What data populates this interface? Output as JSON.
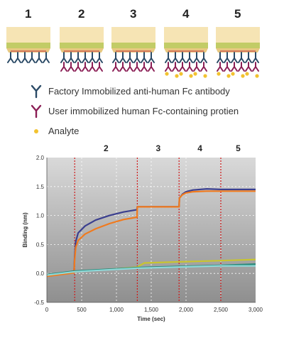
{
  "steps": [
    {
      "label": "1",
      "coating": "factory",
      "analyte": false
    },
    {
      "label": "2",
      "coating": "user",
      "analyte": false
    },
    {
      "label": "3",
      "coating": "user",
      "analyte": false
    },
    {
      "label": "4",
      "coating": "user",
      "analyte": true
    },
    {
      "label": "5",
      "coating": "user",
      "analyte": true
    }
  ],
  "legend": [
    {
      "icon": "factory-antibody-icon",
      "color": "#2a4a66",
      "label": "Factory Immobilized anti-human Fc antibody"
    },
    {
      "icon": "user-protein-icon",
      "color": "#8b1e55",
      "label": "User immobilized human Fc-containing protien"
    },
    {
      "icon": "analyte-dot-icon",
      "color": "#f2c230",
      "label": "Analyte"
    }
  ],
  "colors": {
    "tip_body": "#f6e4b4",
    "tip_band": "#c2cc66",
    "tip_base": "#e8c880",
    "plot_bg_top": "#d9d9d9",
    "plot_bg_bottom": "#8f8f8f",
    "step_line": "#d01818"
  },
  "chart_data": {
    "type": "line",
    "xlabel": "Time (sec)",
    "ylabel": "Binding (nm)",
    "xlim": [
      0,
      3000
    ],
    "ylim": [
      -0.5,
      2.0
    ],
    "xticks": [
      0,
      500,
      1000,
      1500,
      2000,
      2500,
      3000
    ],
    "xtick_labels": [
      "0",
      "500",
      "1,000",
      "1,500",
      "2,000",
      "2,500",
      "3,000"
    ],
    "yticks": [
      -0.5,
      0.0,
      0.5,
      1.0,
      1.5,
      2.0
    ],
    "ytick_labels": [
      "-0.5",
      "0.0",
      "0.5",
      "1.0",
      "1.5",
      "2.0"
    ],
    "grid": true,
    "step_markers": [
      {
        "label": "2",
        "x": 400
      },
      {
        "label": "3",
        "x": 1300
      },
      {
        "label": "4",
        "x": 1900
      },
      {
        "label": "5",
        "x": 2500
      }
    ],
    "series": [
      {
        "color": "#3b3f8f",
        "x": [
          0,
          390,
          400,
          415,
          450,
          550,
          700,
          900,
          1100,
          1295,
          1300,
          1900,
          1905,
          1950,
          2000,
          2100,
          2300,
          2500,
          3000
        ],
        "y": [
          -0.04,
          0.02,
          0.3,
          0.55,
          0.7,
          0.82,
          0.92,
          1.0,
          1.06,
          1.1,
          1.15,
          1.15,
          1.3,
          1.37,
          1.41,
          1.44,
          1.46,
          1.45,
          1.45
        ]
      },
      {
        "color": "#f07a1e",
        "x": [
          0,
          390,
          400,
          415,
          450,
          550,
          700,
          900,
          1100,
          1295,
          1300,
          1900,
          1905,
          1950,
          2000,
          2100,
          2300,
          2500,
          3000
        ],
        "y": [
          -0.05,
          0.01,
          0.25,
          0.45,
          0.57,
          0.68,
          0.77,
          0.86,
          0.93,
          0.97,
          1.15,
          1.15,
          1.3,
          1.36,
          1.39,
          1.41,
          1.42,
          1.42,
          1.42
        ]
      },
      {
        "color": "#c8c530",
        "x": [
          0,
          400,
          1000,
          1300,
          1400,
          1900,
          2500,
          3000
        ],
        "y": [
          -0.02,
          0.03,
          0.08,
          0.11,
          0.18,
          0.2,
          0.22,
          0.24
        ]
      },
      {
        "color": "#2a8a7a",
        "x": [
          0,
          400,
          1000,
          1300,
          1900,
          2500,
          3000
        ],
        "y": [
          -0.02,
          0.04,
          0.08,
          0.1,
          0.12,
          0.14,
          0.16
        ]
      },
      {
        "color": "#8fd8d8",
        "x": [
          0,
          400,
          1000,
          1300,
          1900,
          2500,
          3000
        ],
        "y": [
          -0.03,
          0.03,
          0.07,
          0.09,
          0.11,
          0.13,
          0.13
        ]
      }
    ]
  }
}
